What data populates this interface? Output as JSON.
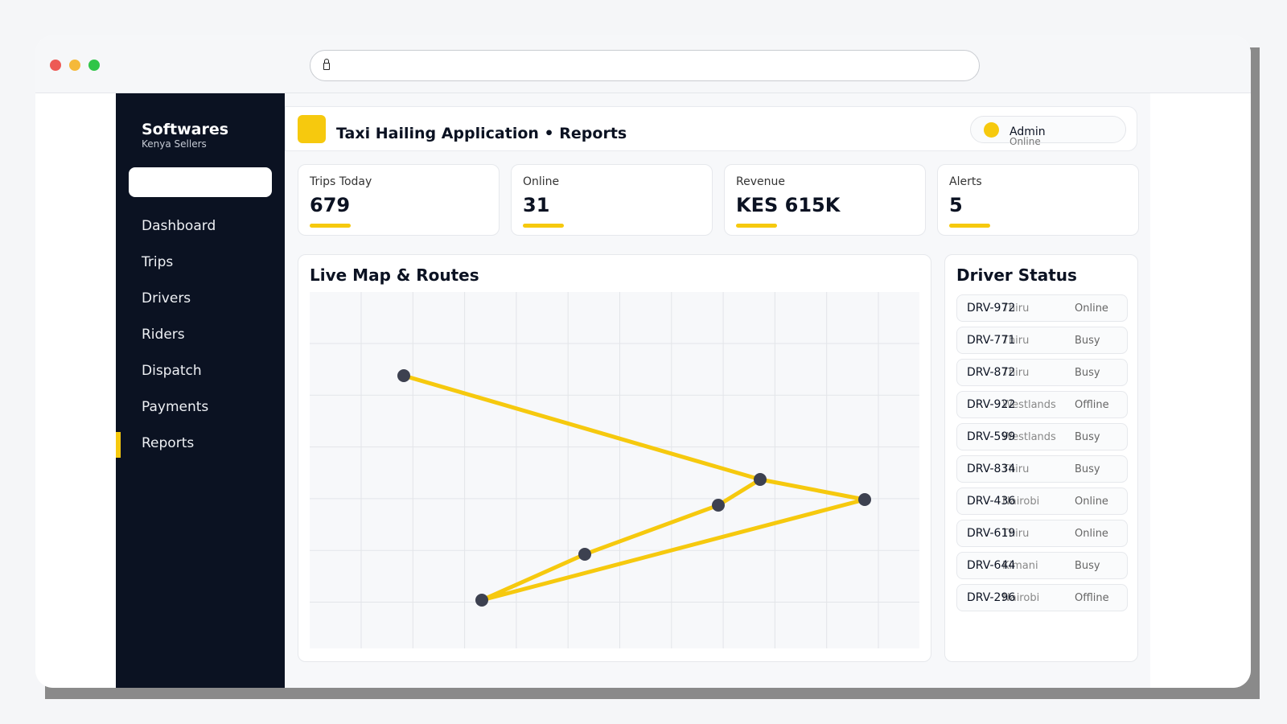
{
  "brand": {
    "name": "Softwares",
    "subtitle": "Kenya Sellers"
  },
  "sidebar": {
    "items": [
      {
        "label": "Dashboard"
      },
      {
        "label": "Trips"
      },
      {
        "label": "Drivers"
      },
      {
        "label": "Riders"
      },
      {
        "label": "Dispatch"
      },
      {
        "label": "Payments"
      },
      {
        "label": "Reports",
        "active": true
      }
    ]
  },
  "header": {
    "title": "Taxi Hailing Application • Reports",
    "admin_name": "Admin",
    "admin_status": "Online"
  },
  "stats": [
    {
      "label": "Trips Today",
      "value": "679"
    },
    {
      "label": "Online",
      "value": "31"
    },
    {
      "label": "Revenue",
      "value": "KES 615K"
    },
    {
      "label": "Alerts",
      "value": "5"
    }
  ],
  "map": {
    "title": "Live Map & Routes",
    "route_color": "#f6c90e",
    "marker_color": "#3d4150"
  },
  "driver_status": {
    "title": "Driver Status",
    "drivers": [
      {
        "id": "DRV-972",
        "location": "Thiru",
        "status": "Online"
      },
      {
        "id": "DRV-771",
        "location": "Thiru",
        "status": "Busy"
      },
      {
        "id": "DRV-872",
        "location": "Thiru",
        "status": "Busy"
      },
      {
        "id": "DRV-922",
        "location": "Westlands",
        "status": "Offline"
      },
      {
        "id": "DRV-599",
        "location": "Westlands",
        "status": "Busy"
      },
      {
        "id": "DRV-834",
        "location": "Thiru",
        "status": "Busy"
      },
      {
        "id": "DRV-436",
        "location": "Nairobi",
        "status": "Online"
      },
      {
        "id": "DRV-619",
        "location": "Thiru",
        "status": "Online"
      },
      {
        "id": "DRV-644",
        "location": "Kimani",
        "status": "Busy"
      },
      {
        "id": "DRV-296",
        "location": "Nairobi",
        "status": "Offline"
      }
    ]
  },
  "colors": {
    "accent": "#f6c90e",
    "sidebar_bg": "#0b1222"
  }
}
